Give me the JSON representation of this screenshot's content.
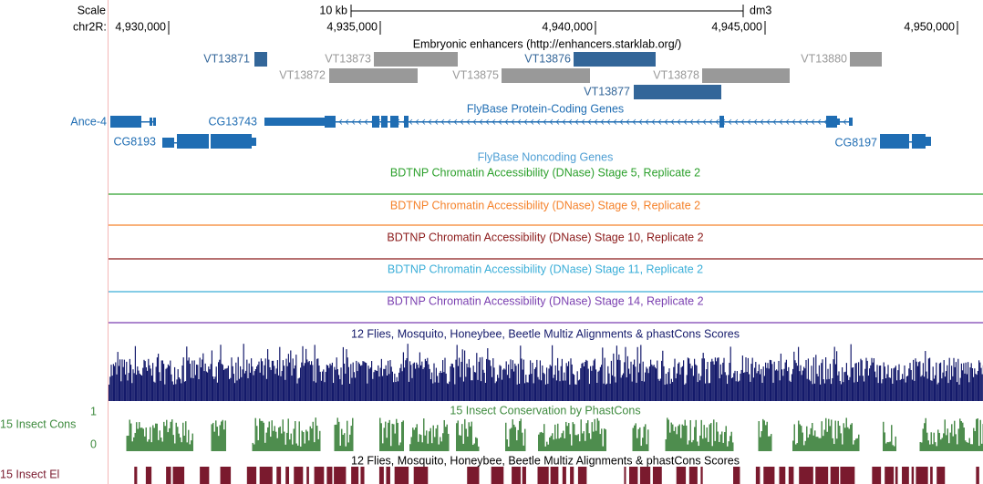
{
  "scale": {
    "label": "Scale",
    "chrom": "chr2R:",
    "span": "10 kb",
    "assembly": "dm3",
    "positions": [
      "4,930,000",
      "4,935,000",
      "4,940,000",
      "4,945,000",
      "4,950,000"
    ]
  },
  "enhancers": {
    "title": "Embryonic enhancers (http://enhancers.starklab.org/)",
    "features": [
      "VT13871",
      "VT13873",
      "VT13876",
      "VT13880",
      "VT13872",
      "VT13875",
      "VT13878",
      "VT13877"
    ]
  },
  "genes": {
    "title": "FlyBase Protein-Coding Genes",
    "labels": [
      "Ance-4",
      "CG13743",
      "CG8193",
      "CG8197"
    ]
  },
  "noncoding": {
    "title": "FlyBase Noncoding Genes"
  },
  "dnase": [
    "BDTNP Chromatin Accessibility (DNase) Stage 5, Replicate 2",
    "BDTNP Chromatin Accessibility (DNase) Stage 9, Replicate 2",
    "BDTNP Chromatin Accessibility (DNase) Stage 10, Replicate 2",
    "BDTNP Chromatin Accessibility (DNase) Stage 11, Replicate 2",
    "BDTNP Chromatin Accessibility (DNase) Stage 14, Replicate 2"
  ],
  "multiz": {
    "title": "12 Flies, Mosquito, Honeybee, Beetle Multiz Alignments & phastCons Scores"
  },
  "phastcons": {
    "title": "15 Insect Conservation by PhastCons",
    "label": "15 Insect Cons",
    "max": "1",
    "min": "0"
  },
  "elements": {
    "title": "12 Flies, Mosquito, Honeybee, Beetle Multiz Alignments & phastCons Scores",
    "label": "15 Insect El"
  }
}
